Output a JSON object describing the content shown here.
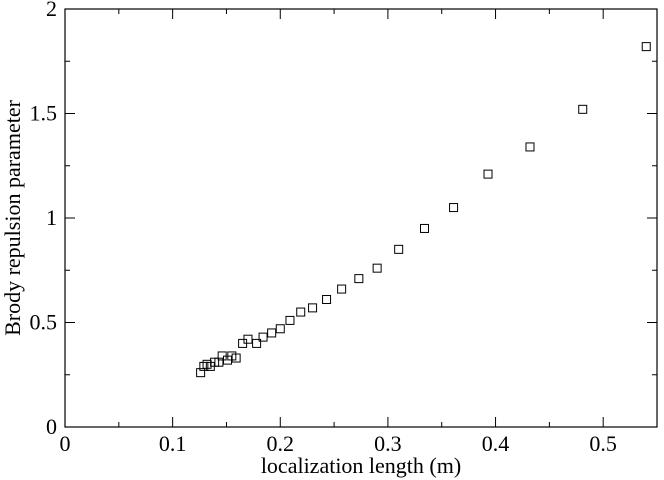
{
  "chart_data": {
    "type": "scatter",
    "title": "",
    "xlabel": "localization length (m)",
    "ylabel": "Brody repulsion parameter",
    "xlim": [
      0,
      0.55
    ],
    "ylim": [
      0,
      2
    ],
    "xticks": [
      0,
      0.1,
      0.2,
      0.3,
      0.4,
      0.5
    ],
    "xtick_labels": [
      "0",
      "0.1",
      "0.2",
      "0.3",
      "0.4",
      "0.5"
    ],
    "yticks": [
      0,
      0.5,
      1,
      1.5,
      2
    ],
    "ytick_labels": [
      "0",
      "0.5",
      "1",
      "1.5",
      "2"
    ],
    "grid": false,
    "marker": "open-square",
    "series": [
      {
        "points": [
          [
            0.126,
            0.26
          ],
          [
            0.129,
            0.29
          ],
          [
            0.132,
            0.3
          ],
          [
            0.135,
            0.29
          ],
          [
            0.139,
            0.31
          ],
          [
            0.143,
            0.31
          ],
          [
            0.146,
            0.34
          ],
          [
            0.151,
            0.32
          ],
          [
            0.155,
            0.34
          ],
          [
            0.159,
            0.33
          ],
          [
            0.165,
            0.4
          ],
          [
            0.17,
            0.42
          ],
          [
            0.178,
            0.4
          ],
          [
            0.184,
            0.43
          ],
          [
            0.192,
            0.45
          ],
          [
            0.2,
            0.47
          ],
          [
            0.209,
            0.51
          ],
          [
            0.219,
            0.55
          ],
          [
            0.23,
            0.57
          ],
          [
            0.243,
            0.61
          ],
          [
            0.257,
            0.66
          ],
          [
            0.273,
            0.71
          ],
          [
            0.29,
            0.76
          ],
          [
            0.31,
            0.85
          ],
          [
            0.334,
            0.95
          ],
          [
            0.361,
            1.05
          ],
          [
            0.393,
            1.21
          ],
          [
            0.432,
            1.34
          ],
          [
            0.481,
            1.52
          ],
          [
            0.54,
            1.82
          ]
        ]
      }
    ]
  }
}
